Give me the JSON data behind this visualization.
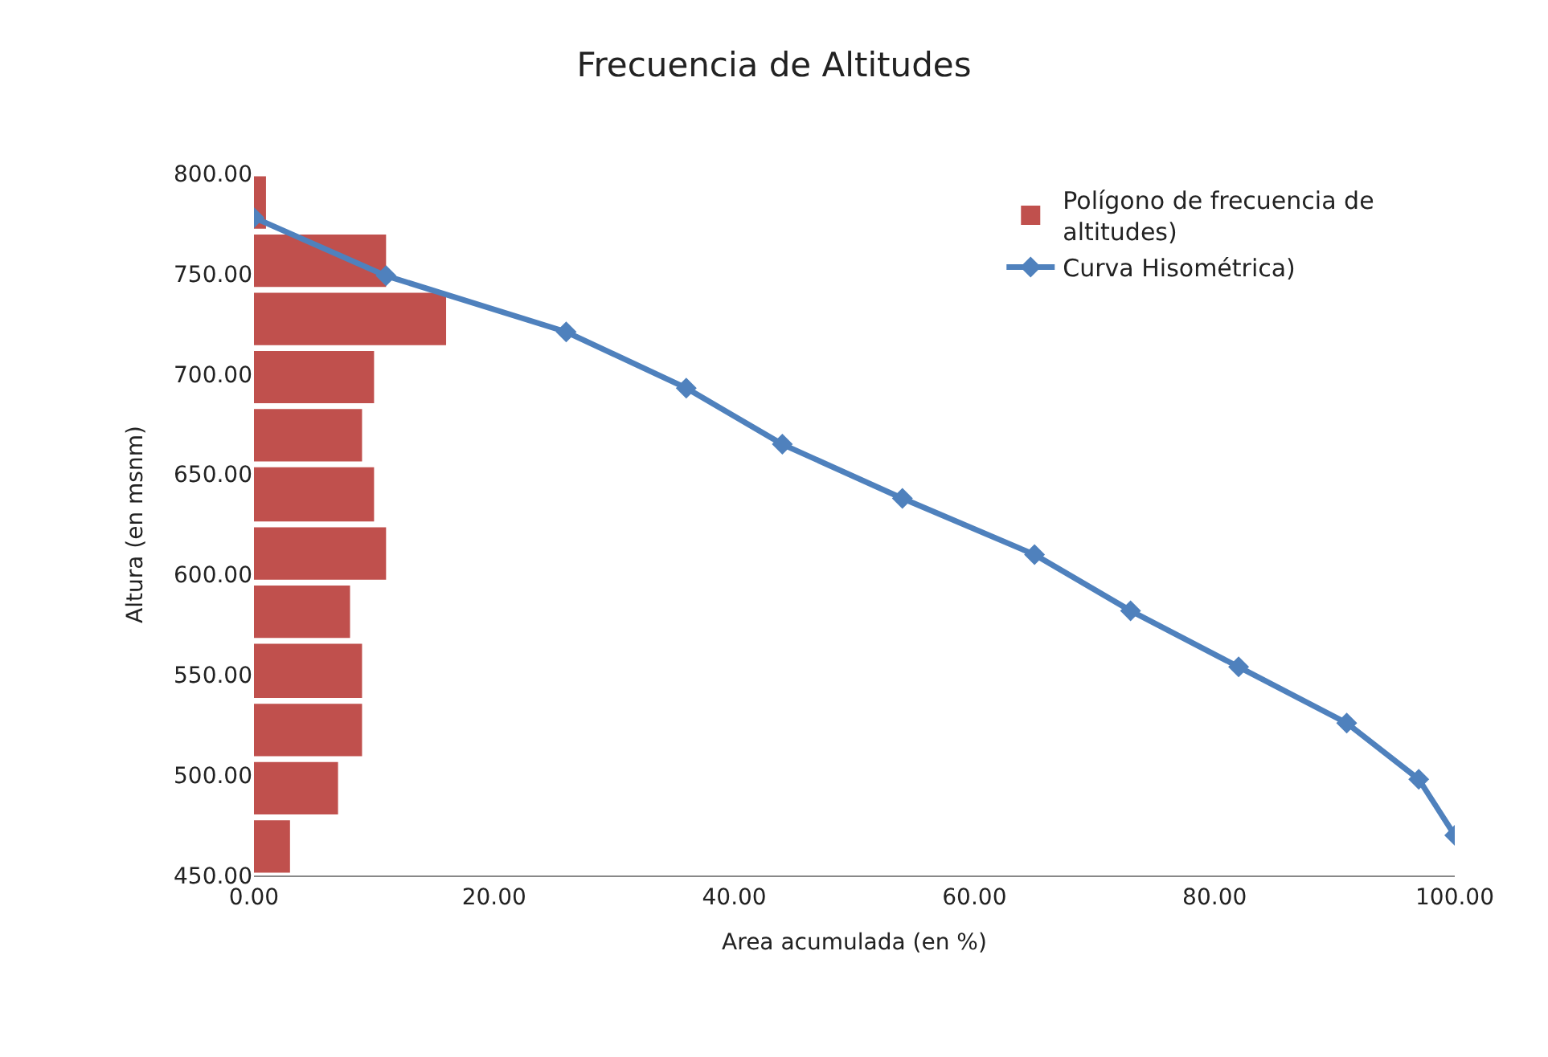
{
  "chart_data": {
    "type": "histogram",
    "orientation": "horizontal",
    "title": "Frecuencia de Altitudes",
    "xlabel": "Area acumulada (en %)",
    "ylabel": "Altura (en msnm)",
    "xlim": [
      0,
      100
    ],
    "xticks": [
      {
        "value": 0,
        "label": "0.00"
      },
      {
        "value": 20,
        "label": "20.00"
      },
      {
        "value": 40,
        "label": "40.00"
      },
      {
        "value": 60,
        "label": "60.00"
      },
      {
        "value": 80,
        "label": "80.00"
      },
      {
        "value": 100,
        "label": "100.00"
      }
    ],
    "ylim": [
      450,
      800
    ],
    "yticks": [
      {
        "value": 450,
        "label": "450.00"
      },
      {
        "value": 500,
        "label": "500.00"
      },
      {
        "value": 550,
        "label": "550.00"
      },
      {
        "value": 600,
        "label": "600.00"
      },
      {
        "value": 650,
        "label": "650.00"
      },
      {
        "value": 700,
        "label": "700.00"
      },
      {
        "value": 750,
        "label": "750.00"
      },
      {
        "value": 800,
        "label": "800.00"
      }
    ],
    "legend": "top right",
    "series": [
      {
        "name": "Polígono de frecuencia de altitudes)",
        "color": "#c0504d",
        "bins": [
          450,
          479,
          508,
          537,
          567,
          596,
          625,
          655,
          684,
          713,
          742,
          771,
          800
        ],
        "values": [
          3,
          7,
          9,
          9,
          8,
          11,
          10,
          9,
          10,
          16,
          11,
          1
        ]
      },
      {
        "name": "Curva Hisométrica)",
        "type": "line",
        "color": "#4f81bd",
        "marker": "diamond",
        "line_style": "solid",
        "x": [
          778,
          749,
          721,
          693,
          665,
          638,
          610,
          582,
          554,
          526,
          498,
          470
        ],
        "values": [
          0,
          11,
          26,
          36,
          44,
          54,
          65,
          73,
          82,
          91,
          97,
          100
        ]
      }
    ]
  }
}
